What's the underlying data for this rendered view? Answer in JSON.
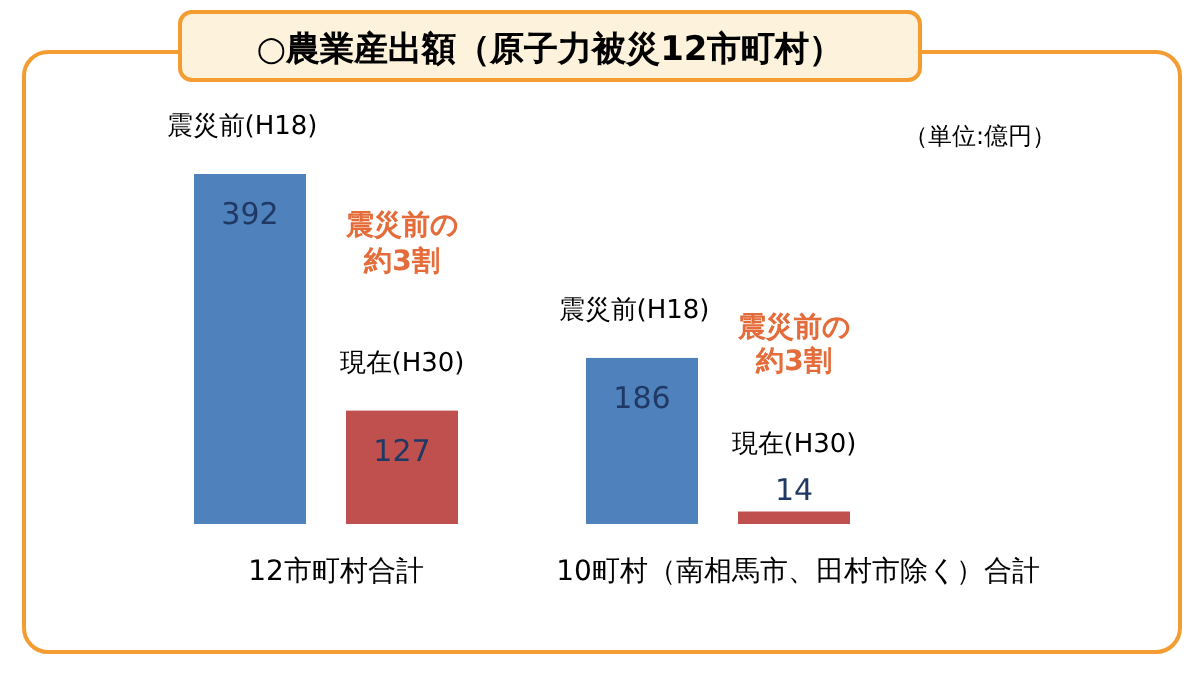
{
  "chart_data": {
    "type": "bar",
    "title": "○農業産出額（原子力被災12市町村）",
    "subtitle": "（単位:億円）",
    "categories": [
      "12市町村合計",
      "10町村（南相馬市、田村市除く）合計"
    ],
    "series": [
      {
        "name": "震災前(H18)",
        "color": "#4f81bd",
        "values": [
          392,
          186
        ]
      },
      {
        "name": "現在(H30)",
        "color": "#c0504d",
        "values": [
          127,
          14
        ]
      }
    ],
    "data_labels": true,
    "annotations": [
      "震災前の約3割",
      "震災前の約3割"
    ]
  }
}
